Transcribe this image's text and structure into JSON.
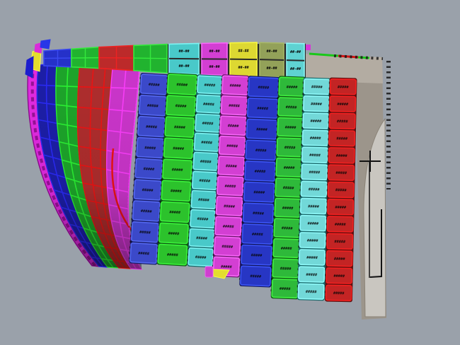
{
  "viewport": {
    "kind": "3d-shaded-cad-view",
    "background": "#9aa1aa"
  },
  "palette": {
    "background": "#9aa1aa",
    "wireframe": "#121212",
    "label_color": "#060606",
    "shade_dark": "rgba(0,0,0,0.40)"
  },
  "hull": {
    "plate_label": "#####",
    "band_label": "##-##",
    "smooth_strips": [
      {
        "name": "edge-strake-magenta",
        "fill": "#df2adf",
        "line": "#8a0d8a",
        "dashed": true
      },
      {
        "name": "strake-blue",
        "fill": "#1c1ea6",
        "line": "#2a2af2"
      },
      {
        "name": "strake-green",
        "fill": "#1da32a",
        "line": "#2bef33"
      },
      {
        "name": "strake-red",
        "fill": "#ad2d2d",
        "line": "#e91414"
      },
      {
        "name": "strake-magenta",
        "fill": "#c935c9",
        "line": "#f73df7"
      }
    ],
    "top_band": [
      {
        "name": "band-blue",
        "fill": "#2531c9",
        "line": "#3a4af0",
        "type": "grid"
      },
      {
        "name": "band-green",
        "fill": "#21b32f",
        "line": "#35e93d",
        "type": "grid"
      },
      {
        "name": "band-red",
        "fill": "#bc2a2a",
        "line": "#ee2222",
        "type": "grid"
      },
      {
        "name": "band-green-2",
        "fill": "#21b32f",
        "line": "#35e93d",
        "type": "grid"
      },
      {
        "name": "band-cyan",
        "fill": "#49c9c9",
        "line": "#7df2f2",
        "type": "labeled"
      },
      {
        "name": "band-magenta",
        "fill": "#d33fd3",
        "line": "#f767f7",
        "type": "labeled"
      },
      {
        "name": "band-yellow",
        "fill": "#ddd832",
        "line": "#f8f840",
        "type": "labeled"
      },
      {
        "name": "band-olive",
        "fill": "#93a159",
        "line": "#a8b868",
        "type": "labeled"
      },
      {
        "name": "band-cyan-2",
        "fill": "#5fd2d2",
        "line": "#8ef8f8",
        "type": "labeled"
      }
    ],
    "plate_columns": [
      {
        "name": "column-blue-1",
        "fill": "#3b49c9",
        "edge": "#5468f0",
        "back": "#161a66",
        "plates": 9
      },
      {
        "name": "column-green-1",
        "fill": "#2cc22c",
        "edge": "#3bf23b",
        "back": "#0e5a12",
        "plates": 9
      },
      {
        "name": "column-cyan-1",
        "fill": "#49c9c9",
        "edge": "#7df2f2",
        "back": "#15686a",
        "plates": 10
      },
      {
        "name": "column-magenta-1",
        "fill": "#d33fd3",
        "edge": "#f767f7",
        "back": "#6e156e",
        "plates": 10
      },
      {
        "name": "column-blue-2",
        "fill": "#2736c4",
        "edge": "#3c55f5",
        "back": "#121660",
        "plates": 10
      },
      {
        "name": "column-green-2",
        "fill": "#2eb93a",
        "edge": "#41ef41",
        "back": "#0e5a12",
        "plates": 11
      },
      {
        "name": "column-cyan-2",
        "fill": "#72d8d8",
        "edge": "#8ef8f8",
        "back": "#19696b",
        "plates": 13
      },
      {
        "name": "column-red",
        "fill": "#c32424",
        "edge": "#f22020",
        "back": "#5e0f0f",
        "plates": 13
      }
    ],
    "underlay_wedges": [
      {
        "name": "wedge-dark-blue",
        "fill": "#141a8c"
      },
      {
        "name": "wedge-dark-green",
        "fill": "#156d15"
      }
    ],
    "corner_bits": [
      {
        "name": "bit-yellow",
        "fill": "#e3de2e",
        "line": "#fdfd50"
      },
      {
        "name": "bit-blue",
        "fill": "#1c1ecd",
        "line": "#1c1ecd"
      },
      {
        "name": "bit-magenta",
        "fill": "#da2ada",
        "line": "#da2ada"
      },
      {
        "name": "bit-blue-2",
        "fill": "#2836e8",
        "line": "#2836e8"
      }
    ],
    "bottom_bits": [
      {
        "name": "sliver-yellow",
        "fill": "#e3de2e",
        "line": "#fbfb46"
      },
      {
        "name": "sliver-magenta-tab",
        "fill": "#cf3ecf",
        "line": "#f05ff0"
      }
    ]
  },
  "structure": {
    "name": "transom-structure",
    "top_fill": "#b3aca2",
    "front_fill": "#9c958b",
    "panel_fill": "#c9c6c0",
    "edge_slivers": [
      "#19c819",
      "#d21414",
      "#19c819"
    ],
    "tick_color": "#151515"
  }
}
